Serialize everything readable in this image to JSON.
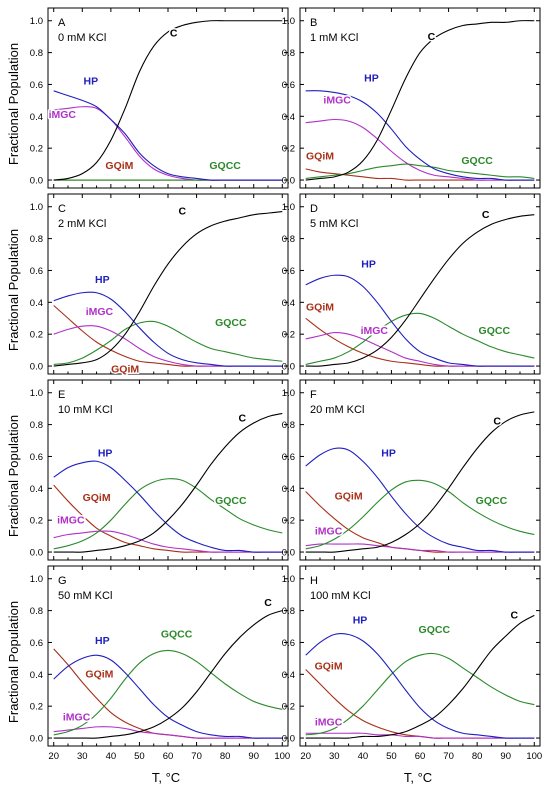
{
  "figure": {
    "ylabel": "Fractional Population",
    "xlabel": "T, °C",
    "xlim": [
      18,
      102
    ],
    "ylim": [
      -0.05,
      1.08
    ],
    "xticks": [
      20,
      30,
      40,
      50,
      60,
      70,
      80,
      90,
      100
    ],
    "yticks": [
      "0.0",
      "0.2",
      "0.4",
      "0.6",
      "0.8",
      "1.0"
    ],
    "colors": {
      "C": "#000000",
      "HP": "#1f1fbf",
      "iMGC": "#b030c8",
      "GQiM": "#a83018",
      "GQCC": "#2a8a2a",
      "axis": "#000000"
    }
  },
  "chart_data": [
    {
      "type": "line",
      "panel": "A",
      "label": "A",
      "condition": "0 mM KCl",
      "x": [
        20,
        25,
        30,
        35,
        40,
        45,
        50,
        55,
        60,
        65,
        70,
        75,
        80,
        85,
        90,
        95,
        100
      ],
      "series": [
        {
          "name": "C",
          "values": [
            0.0,
            0.01,
            0.04,
            0.11,
            0.25,
            0.45,
            0.68,
            0.84,
            0.93,
            0.97,
            0.99,
            1.0,
            1.0,
            1.0,
            1.0,
            1.0,
            1.0
          ]
        },
        {
          "name": "HP",
          "values": [
            0.56,
            0.53,
            0.5,
            0.46,
            0.38,
            0.29,
            0.17,
            0.09,
            0.04,
            0.02,
            0.01,
            0.0,
            0.0,
            0.0,
            0.0,
            0.0,
            0.0
          ]
        },
        {
          "name": "iMGC",
          "values": [
            0.44,
            0.45,
            0.46,
            0.45,
            0.38,
            0.27,
            0.15,
            0.07,
            0.03,
            0.01,
            0.0,
            0.0,
            0.0,
            0.0,
            0.0,
            0.0,
            0.0
          ]
        },
        {
          "name": "GQiM",
          "values": [
            0.0,
            0.0,
            0.0,
            0.0,
            0.0,
            0.0,
            0.0,
            0.0,
            0.0,
            0.0,
            0.0,
            0.0,
            0.0,
            0.0,
            0.0,
            0.0,
            0.0
          ]
        },
        {
          "name": "GQCC",
          "values": [
            0.0,
            0.0,
            0.0,
            0.0,
            0.0,
            0.0,
            0.0,
            0.0,
            0.0,
            0.0,
            0.0,
            0.0,
            0.0,
            0.0,
            0.0,
            0.0,
            0.0
          ]
        }
      ]
    },
    {
      "type": "line",
      "panel": "B",
      "label": "B",
      "condition": "1 mM KCl",
      "x": [
        20,
        25,
        30,
        35,
        40,
        45,
        50,
        55,
        60,
        65,
        70,
        75,
        80,
        85,
        90,
        95,
        100
      ],
      "series": [
        {
          "name": "C",
          "values": [
            0.0,
            0.01,
            0.02,
            0.05,
            0.12,
            0.25,
            0.44,
            0.64,
            0.8,
            0.89,
            0.94,
            0.97,
            0.98,
            0.99,
            0.99,
            1.0,
            1.0
          ]
        },
        {
          "name": "HP",
          "values": [
            0.56,
            0.56,
            0.55,
            0.53,
            0.49,
            0.42,
            0.32,
            0.21,
            0.13,
            0.07,
            0.04,
            0.02,
            0.01,
            0.01,
            0.0,
            0.0,
            0.0
          ]
        },
        {
          "name": "iMGC",
          "values": [
            0.36,
            0.37,
            0.38,
            0.37,
            0.33,
            0.26,
            0.18,
            0.11,
            0.06,
            0.03,
            0.02,
            0.01,
            0.0,
            0.0,
            0.0,
            0.0,
            0.0
          ]
        },
        {
          "name": "GQiM",
          "values": [
            0.07,
            0.05,
            0.04,
            0.03,
            0.02,
            0.01,
            0.01,
            0.0,
            0.0,
            0.0,
            0.0,
            0.0,
            0.0,
            0.0,
            0.0,
            0.0,
            0.0
          ]
        },
        {
          "name": "GQCC",
          "values": [
            0.01,
            0.02,
            0.03,
            0.04,
            0.06,
            0.08,
            0.09,
            0.1,
            0.09,
            0.08,
            0.06,
            0.05,
            0.04,
            0.03,
            0.02,
            0.02,
            0.01
          ]
        }
      ]
    },
    {
      "type": "line",
      "panel": "C",
      "label": "C",
      "condition": "2 mM KCl",
      "x": [
        20,
        25,
        30,
        35,
        40,
        45,
        50,
        55,
        60,
        65,
        70,
        75,
        80,
        85,
        90,
        95,
        100
      ],
      "series": [
        {
          "name": "C",
          "values": [
            0.0,
            0.01,
            0.02,
            0.04,
            0.1,
            0.2,
            0.34,
            0.5,
            0.64,
            0.75,
            0.83,
            0.88,
            0.91,
            0.93,
            0.95,
            0.96,
            0.97
          ]
        },
        {
          "name": "HP",
          "values": [
            0.41,
            0.44,
            0.46,
            0.46,
            0.42,
            0.34,
            0.24,
            0.15,
            0.08,
            0.04,
            0.02,
            0.01,
            0.0,
            0.0,
            0.0,
            0.0,
            0.0
          ]
        },
        {
          "name": "iMGC",
          "values": [
            0.2,
            0.23,
            0.25,
            0.25,
            0.22,
            0.17,
            0.11,
            0.06,
            0.03,
            0.01,
            0.0,
            0.0,
            0.0,
            0.0,
            0.0,
            0.0,
            0.0
          ]
        },
        {
          "name": "GQiM",
          "values": [
            0.38,
            0.3,
            0.22,
            0.15,
            0.1,
            0.06,
            0.03,
            0.02,
            0.01,
            0.0,
            0.0,
            0.0,
            0.0,
            0.0,
            0.0,
            0.0,
            0.0
          ]
        },
        {
          "name": "GQCC",
          "values": [
            0.01,
            0.02,
            0.05,
            0.1,
            0.16,
            0.23,
            0.27,
            0.28,
            0.25,
            0.2,
            0.15,
            0.11,
            0.09,
            0.07,
            0.05,
            0.04,
            0.03
          ]
        }
      ]
    },
    {
      "type": "line",
      "panel": "D",
      "label": "D",
      "condition": "5 mM KCl",
      "x": [
        20,
        25,
        30,
        35,
        40,
        45,
        50,
        55,
        60,
        65,
        70,
        75,
        80,
        85,
        90,
        95,
        100
      ],
      "series": [
        {
          "name": "C",
          "values": [
            0.0,
            0.0,
            0.01,
            0.02,
            0.05,
            0.1,
            0.18,
            0.29,
            0.42,
            0.55,
            0.67,
            0.77,
            0.84,
            0.89,
            0.92,
            0.94,
            0.95
          ]
        },
        {
          "name": "HP",
          "values": [
            0.51,
            0.55,
            0.57,
            0.56,
            0.5,
            0.4,
            0.28,
            0.17,
            0.09,
            0.05,
            0.02,
            0.01,
            0.0,
            0.0,
            0.0,
            0.0,
            0.0
          ]
        },
        {
          "name": "iMGC",
          "values": [
            0.17,
            0.19,
            0.21,
            0.2,
            0.17,
            0.13,
            0.09,
            0.05,
            0.03,
            0.01,
            0.0,
            0.0,
            0.0,
            0.0,
            0.0,
            0.0,
            0.0
          ]
        },
        {
          "name": "GQiM",
          "values": [
            0.3,
            0.23,
            0.17,
            0.12,
            0.08,
            0.05,
            0.03,
            0.02,
            0.01,
            0.0,
            0.0,
            0.0,
            0.0,
            0.0,
            0.0,
            0.0,
            0.0
          ]
        },
        {
          "name": "GQCC",
          "values": [
            0.01,
            0.03,
            0.05,
            0.09,
            0.15,
            0.22,
            0.28,
            0.32,
            0.33,
            0.3,
            0.25,
            0.2,
            0.16,
            0.12,
            0.09,
            0.07,
            0.05
          ]
        }
      ]
    },
    {
      "type": "line",
      "panel": "E",
      "label": "E",
      "condition": "10 mM KCl",
      "x": [
        20,
        25,
        30,
        35,
        40,
        45,
        50,
        55,
        60,
        65,
        70,
        75,
        80,
        85,
        90,
        95,
        100
      ],
      "series": [
        {
          "name": "C",
          "values": [
            0.0,
            0.0,
            0.0,
            0.01,
            0.02,
            0.04,
            0.07,
            0.12,
            0.2,
            0.3,
            0.42,
            0.55,
            0.66,
            0.75,
            0.81,
            0.85,
            0.87
          ]
        },
        {
          "name": "HP",
          "values": [
            0.47,
            0.53,
            0.56,
            0.57,
            0.53,
            0.45,
            0.36,
            0.26,
            0.17,
            0.1,
            0.06,
            0.03,
            0.01,
            0.01,
            0.0,
            0.0,
            0.0
          ]
        },
        {
          "name": "iMGC",
          "values": [
            0.09,
            0.11,
            0.12,
            0.13,
            0.13,
            0.11,
            0.08,
            0.05,
            0.03,
            0.02,
            0.01,
            0.0,
            0.0,
            0.0,
            0.0,
            0.0,
            0.0
          ]
        },
        {
          "name": "GQiM",
          "values": [
            0.42,
            0.32,
            0.23,
            0.15,
            0.1,
            0.06,
            0.04,
            0.02,
            0.01,
            0.0,
            0.0,
            0.0,
            0.0,
            0.0,
            0.0,
            0.0,
            0.0
          ]
        },
        {
          "name": "GQCC",
          "values": [
            0.02,
            0.04,
            0.07,
            0.12,
            0.2,
            0.3,
            0.39,
            0.44,
            0.46,
            0.45,
            0.4,
            0.33,
            0.27,
            0.21,
            0.17,
            0.14,
            0.12
          ]
        }
      ]
    },
    {
      "type": "line",
      "panel": "F",
      "label": "F",
      "condition": "20 mM KCl",
      "x": [
        20,
        25,
        30,
        35,
        40,
        45,
        50,
        55,
        60,
        65,
        70,
        75,
        80,
        85,
        90,
        95,
        100
      ],
      "series": [
        {
          "name": "C",
          "values": [
            0.0,
            0.0,
            0.0,
            0.01,
            0.02,
            0.03,
            0.06,
            0.11,
            0.18,
            0.28,
            0.4,
            0.53,
            0.65,
            0.75,
            0.82,
            0.86,
            0.88
          ]
        },
        {
          "name": "HP",
          "values": [
            0.54,
            0.61,
            0.65,
            0.64,
            0.57,
            0.47,
            0.35,
            0.24,
            0.15,
            0.09,
            0.05,
            0.03,
            0.01,
            0.01,
            0.0,
            0.0,
            0.0
          ]
        },
        {
          "name": "iMGC",
          "values": [
            0.04,
            0.05,
            0.05,
            0.05,
            0.05,
            0.04,
            0.03,
            0.02,
            0.01,
            0.01,
            0.0,
            0.0,
            0.0,
            0.0,
            0.0,
            0.0,
            0.0
          ]
        },
        {
          "name": "GQiM",
          "values": [
            0.38,
            0.29,
            0.21,
            0.14,
            0.09,
            0.06,
            0.03,
            0.02,
            0.01,
            0.0,
            0.0,
            0.0,
            0.0,
            0.0,
            0.0,
            0.0,
            0.0
          ]
        },
        {
          "name": "GQCC",
          "values": [
            0.02,
            0.04,
            0.08,
            0.14,
            0.22,
            0.31,
            0.39,
            0.44,
            0.45,
            0.43,
            0.38,
            0.31,
            0.25,
            0.2,
            0.16,
            0.13,
            0.11
          ]
        }
      ]
    },
    {
      "type": "line",
      "panel": "G",
      "label": "G",
      "condition": "50 mM KCl",
      "x": [
        20,
        25,
        30,
        35,
        40,
        45,
        50,
        55,
        60,
        65,
        70,
        75,
        80,
        85,
        90,
        95,
        100
      ],
      "series": [
        {
          "name": "C",
          "values": [
            0.0,
            0.0,
            0.0,
            0.0,
            0.01,
            0.02,
            0.04,
            0.07,
            0.12,
            0.19,
            0.29,
            0.41,
            0.53,
            0.63,
            0.71,
            0.77,
            0.8
          ]
        },
        {
          "name": "HP",
          "values": [
            0.37,
            0.45,
            0.5,
            0.52,
            0.49,
            0.41,
            0.31,
            0.21,
            0.13,
            0.08,
            0.04,
            0.02,
            0.01,
            0.01,
            0.0,
            0.0,
            0.0
          ]
        },
        {
          "name": "iMGC",
          "values": [
            0.04,
            0.05,
            0.06,
            0.07,
            0.07,
            0.06,
            0.04,
            0.03,
            0.02,
            0.01,
            0.0,
            0.0,
            0.0,
            0.0,
            0.0,
            0.0,
            0.0
          ]
        },
        {
          "name": "GQiM",
          "values": [
            0.56,
            0.46,
            0.35,
            0.25,
            0.16,
            0.1,
            0.06,
            0.03,
            0.02,
            0.01,
            0.0,
            0.0,
            0.0,
            0.0,
            0.0,
            0.0,
            0.0
          ]
        },
        {
          "name": "GQCC",
          "values": [
            0.02,
            0.04,
            0.08,
            0.15,
            0.25,
            0.37,
            0.47,
            0.53,
            0.55,
            0.53,
            0.48,
            0.41,
            0.34,
            0.28,
            0.23,
            0.2,
            0.18
          ]
        }
      ]
    },
    {
      "type": "line",
      "panel": "H",
      "label": "H",
      "condition": "100 mM KCl",
      "x": [
        20,
        25,
        30,
        35,
        40,
        45,
        50,
        55,
        60,
        65,
        70,
        75,
        80,
        85,
        90,
        95,
        100
      ],
      "series": [
        {
          "name": "C",
          "values": [
            0.0,
            0.0,
            0.0,
            0.0,
            0.01,
            0.01,
            0.02,
            0.04,
            0.08,
            0.13,
            0.21,
            0.31,
            0.43,
            0.55,
            0.64,
            0.72,
            0.77
          ]
        },
        {
          "name": "HP",
          "values": [
            0.52,
            0.6,
            0.65,
            0.65,
            0.61,
            0.53,
            0.42,
            0.3,
            0.19,
            0.11,
            0.06,
            0.03,
            0.02,
            0.01,
            0.0,
            0.0,
            0.0
          ]
        },
        {
          "name": "iMGC",
          "values": [
            0.03,
            0.03,
            0.03,
            0.03,
            0.03,
            0.02,
            0.02,
            0.01,
            0.01,
            0.0,
            0.0,
            0.0,
            0.0,
            0.0,
            0.0,
            0.0,
            0.0
          ]
        },
        {
          "name": "GQiM",
          "values": [
            0.43,
            0.34,
            0.25,
            0.17,
            0.11,
            0.07,
            0.04,
            0.02,
            0.01,
            0.0,
            0.0,
            0.0,
            0.0,
            0.0,
            0.0,
            0.0,
            0.0
          ]
        },
        {
          "name": "GQCC",
          "values": [
            0.02,
            0.03,
            0.06,
            0.12,
            0.2,
            0.3,
            0.4,
            0.48,
            0.52,
            0.53,
            0.5,
            0.44,
            0.38,
            0.32,
            0.27,
            0.23,
            0.21
          ]
        }
      ]
    }
  ]
}
